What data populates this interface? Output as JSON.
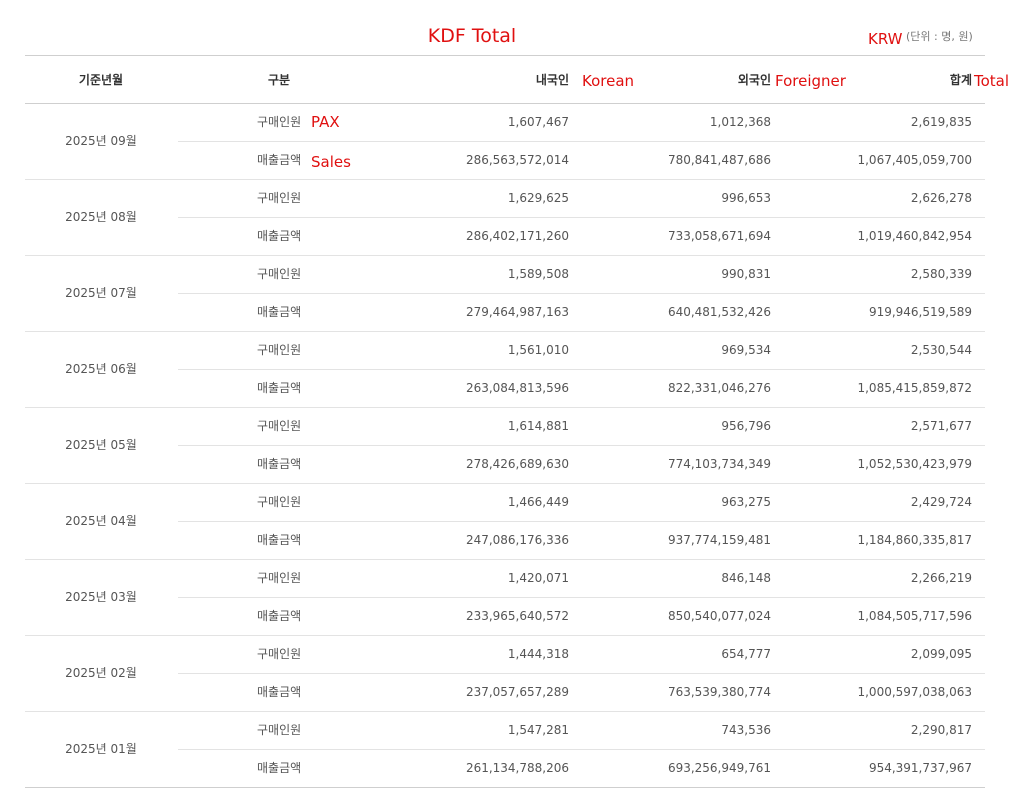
{
  "title": "KDF Total",
  "unit_note": {
    "label": "KRW",
    "text": "(단위 : 명, 원)"
  },
  "header": {
    "columns": [
      "기준년월",
      "구분",
      "내국인",
      "외국인",
      "합계"
    ],
    "annotations": [
      "Korean",
      "Foreigner",
      "Total"
    ]
  },
  "row_annotations": [
    "PAX",
    "Sales"
  ],
  "rows": [
    {
      "month": "2025년 09월",
      "items": [
        [
          "구매인원",
          "1,607,467",
          "1,012,368",
          "2,619,835"
        ],
        [
          "매출금액",
          "286,563,572,014",
          "780,841,487,686",
          "1,067,405,059,700"
        ]
      ]
    },
    {
      "month": "2025년 08월",
      "items": [
        [
          "구매인원",
          "1,629,625",
          "996,653",
          "2,626,278"
        ],
        [
          "매출금액",
          "286,402,171,260",
          "733,058,671,694",
          "1,019,460,842,954"
        ]
      ]
    },
    {
      "month": "2025년 07월",
      "items": [
        [
          "구매인원",
          "1,589,508",
          "990,831",
          "2,580,339"
        ],
        [
          "매출금액",
          "279,464,987,163",
          "640,481,532,426",
          "919,946,519,589"
        ]
      ]
    },
    {
      "month": "2025년 06월",
      "items": [
        [
          "구매인원",
          "1,561,010",
          "969,534",
          "2,530,544"
        ],
        [
          "매출금액",
          "263,084,813,596",
          "822,331,046,276",
          "1,085,415,859,872"
        ]
      ]
    },
    {
      "month": "2025년 05월",
      "items": [
        [
          "구매인원",
          "1,614,881",
          "956,796",
          "2,571,677"
        ],
        [
          "매출금액",
          "278,426,689,630",
          "774,103,734,349",
          "1,052,530,423,979"
        ]
      ]
    },
    {
      "month": "2025년 04월",
      "items": [
        [
          "구매인원",
          "1,466,449",
          "963,275",
          "2,429,724"
        ],
        [
          "매출금액",
          "247,086,176,336",
          "937,774,159,481",
          "1,184,860,335,817"
        ]
      ]
    },
    {
      "month": "2025년 03월",
      "items": [
        [
          "구매인원",
          "1,420,071",
          "846,148",
          "2,266,219"
        ],
        [
          "매출금액",
          "233,965,640,572",
          "850,540,077,024",
          "1,084,505,717,596"
        ]
      ]
    },
    {
      "month": "2025년 02월",
      "items": [
        [
          "구매인원",
          "1,444,318",
          "654,777",
          "2,099,095"
        ],
        [
          "매출금액",
          "237,057,657,289",
          "763,539,380,774",
          "1,000,597,038,063"
        ]
      ]
    },
    {
      "month": "2025년 01월",
      "items": [
        [
          "구매인원",
          "1,547,281",
          "743,536",
          "2,290,817"
        ],
        [
          "매출금액",
          "261,134,788,206",
          "693,256,949,761",
          "954,391,737,967"
        ]
      ]
    }
  ]
}
